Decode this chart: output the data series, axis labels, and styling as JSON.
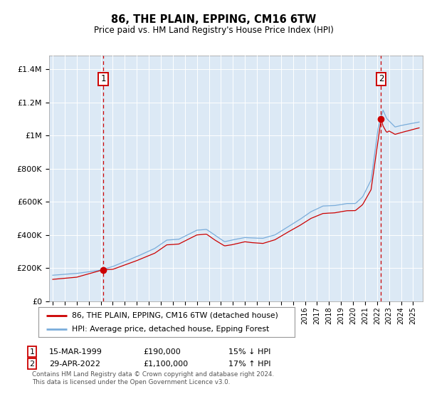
{
  "title": "86, THE PLAIN, EPPING, CM16 6TW",
  "subtitle": "Price paid vs. HM Land Registry's House Price Index (HPI)",
  "legend_line1": "86, THE PLAIN, EPPING, CM16 6TW (detached house)",
  "legend_line2": "HPI: Average price, detached house, Epping Forest",
  "sale1_date": "15-MAR-1999",
  "sale1_price": "£190,000",
  "sale1_hpi": "15% ↓ HPI",
  "sale1_year": 1999.21,
  "sale1_value": 190000,
  "sale2_date": "29-APR-2022",
  "sale2_price": "£1,100,000",
  "sale2_hpi": "17% ↑ HPI",
  "sale2_year": 2022.33,
  "sale2_value": 1100000,
  "ylabel_ticks": [
    "£0",
    "£200K",
    "£400K",
    "£600K",
    "£800K",
    "£1M",
    "£1.2M",
    "£1.4M"
  ],
  "ylabel_values": [
    0,
    200000,
    400000,
    600000,
    800000,
    1000000,
    1200000,
    1400000
  ],
  "ylim": [
    0,
    1480000
  ],
  "xlim_start": 1994.7,
  "xlim_end": 2025.8,
  "background_color": "#dce9f5",
  "red_line_color": "#cc0000",
  "blue_line_color": "#7aaddb",
  "grid_color": "#ffffff",
  "footnote": "Contains HM Land Registry data © Crown copyright and database right 2024.\nThis data is licensed under the Open Government Licence v3.0."
}
